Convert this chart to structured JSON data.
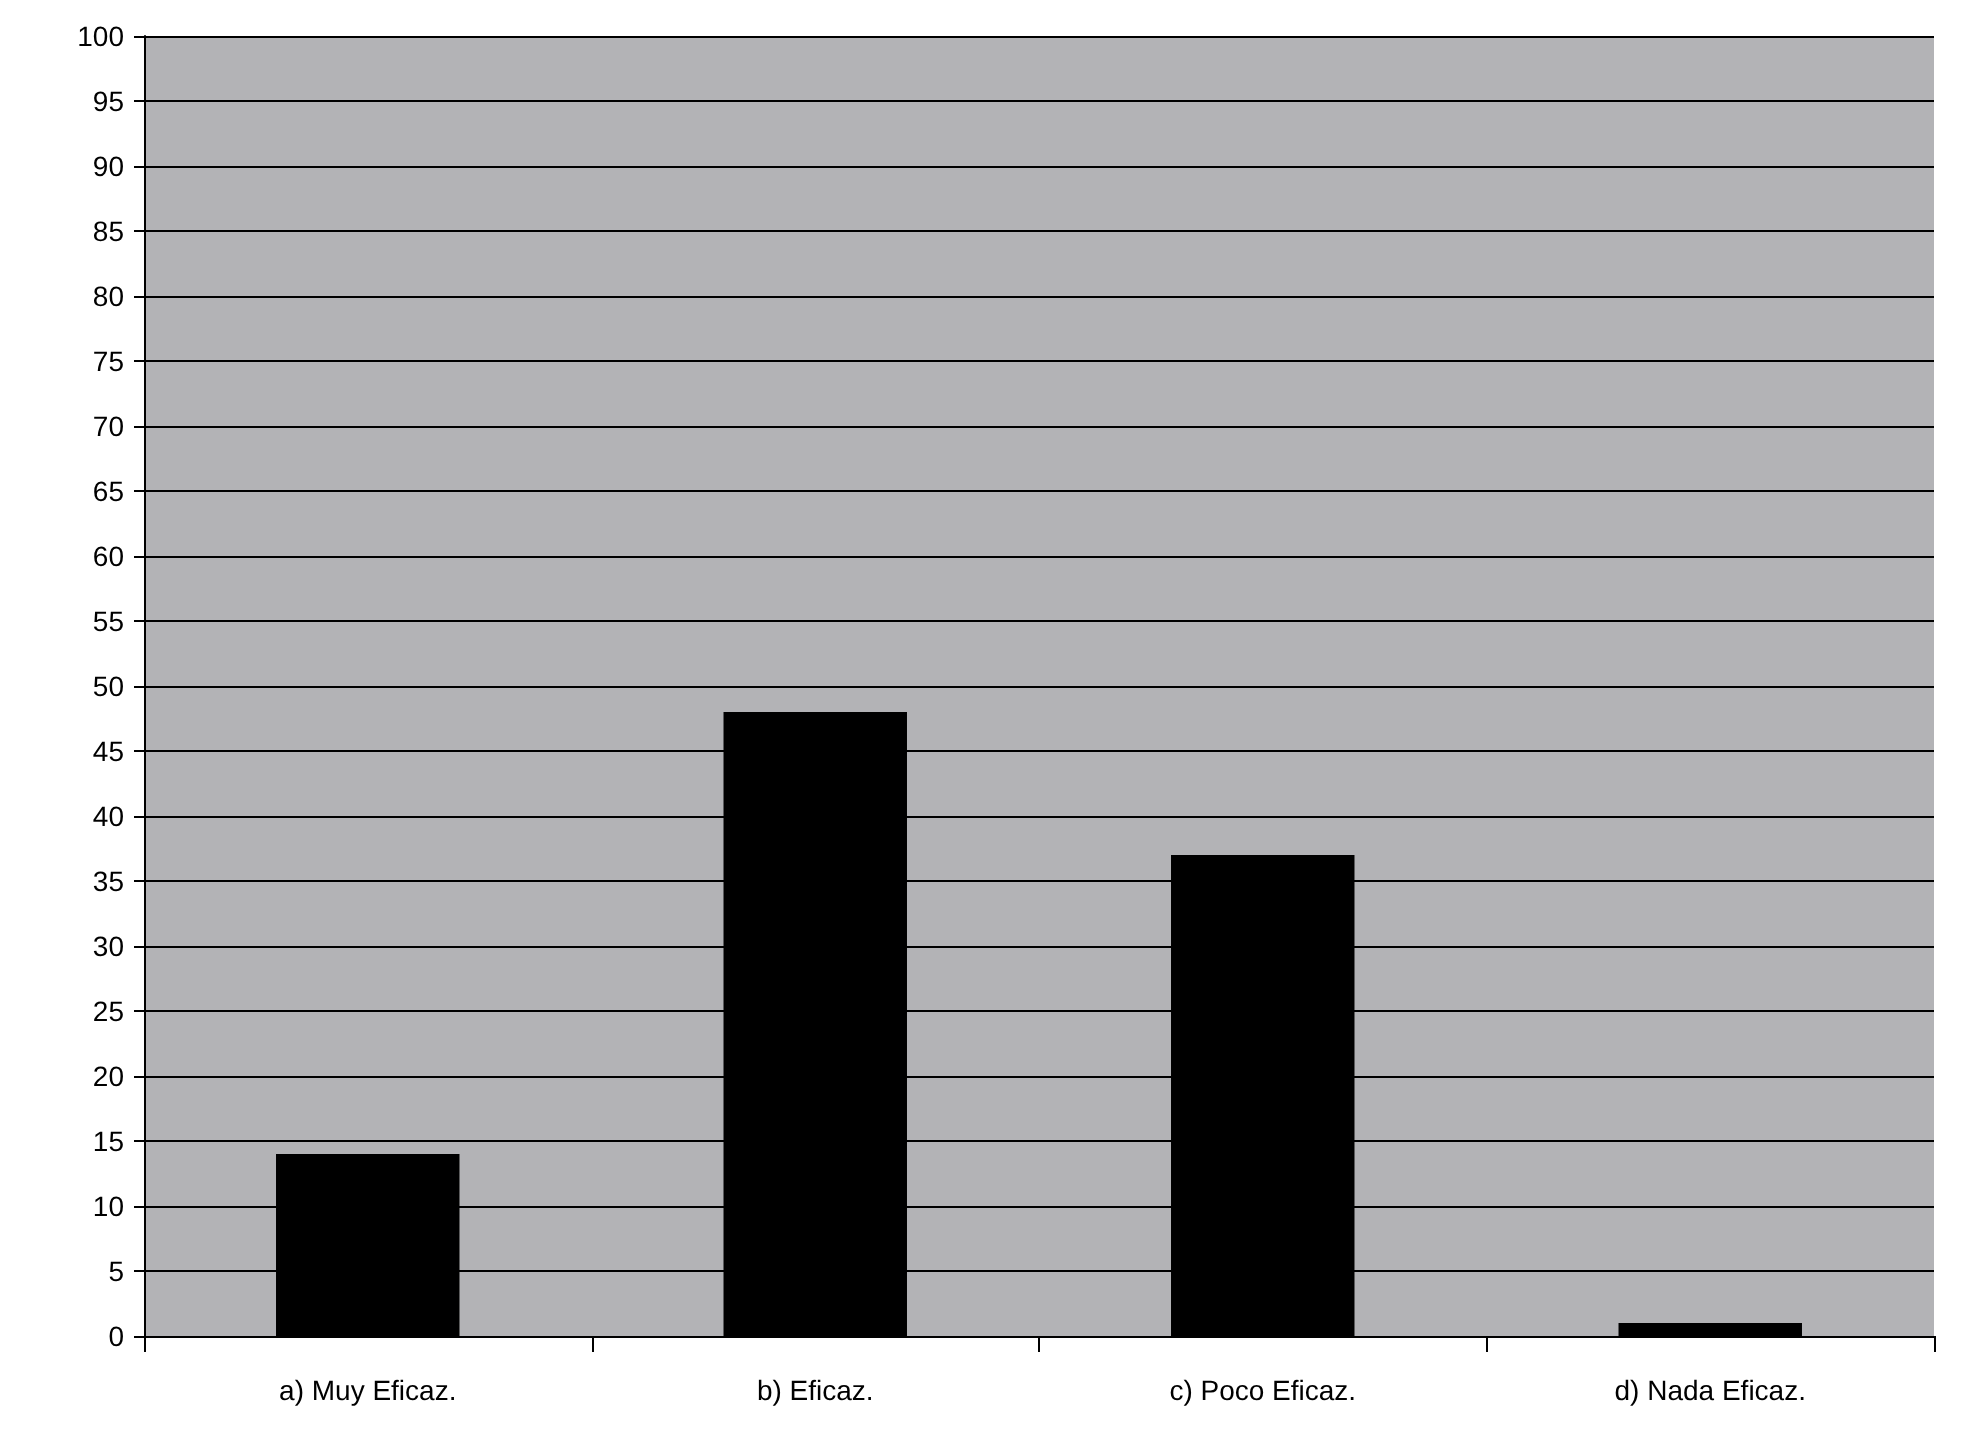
{
  "chart_data": {
    "type": "bar",
    "categories": [
      "a) Muy Eficaz.",
      "b) Eficaz.",
      "c) Poco Eficaz.",
      "d) Nada Eficaz."
    ],
    "values": [
      14,
      48,
      37,
      1
    ],
    "color": "#000000",
    "ylim": [
      0,
      100
    ],
    "yticks": [
      0,
      5,
      10,
      15,
      20,
      25,
      30,
      35,
      40,
      45,
      50,
      55,
      60,
      65,
      70,
      75,
      80,
      85,
      90,
      95,
      100
    ],
    "grid": "y"
  }
}
